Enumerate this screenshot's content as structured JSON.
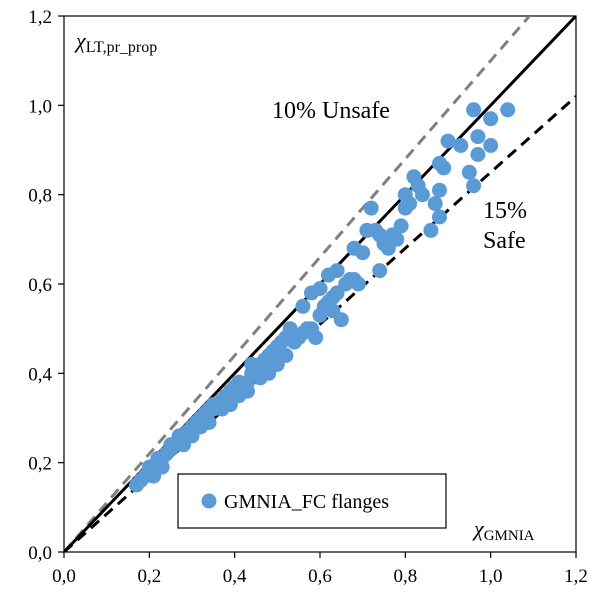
{
  "chart_data": {
    "type": "scatter",
    "xlim": [
      0,
      1.2
    ],
    "ylim": [
      0,
      1.2
    ],
    "x_ticks": [
      "0,0",
      "0,2",
      "0,4",
      "0,6",
      "0,8",
      "1,0",
      "1,2"
    ],
    "y_ticks": [
      "0,0",
      "0,2",
      "0,4",
      "0,6",
      "0,8",
      "1,0",
      "1,2"
    ],
    "xlabel": {
      "main": "χ",
      "sub": "GMNIA"
    },
    "ylabel": {
      "main": "χ",
      "sub": "LT,pr_prop"
    },
    "grid": false,
    "legend": {
      "position": "bottom-center",
      "entries": [
        "GMNIA_FC flanges"
      ]
    },
    "reference_lines": [
      {
        "slope": 1.1,
        "style": "dashed",
        "color": "#808080",
        "label_lines": [
          "10% Unsafe"
        ]
      },
      {
        "slope": 1.0,
        "style": "solid",
        "color": "#000000",
        "label_lines": []
      },
      {
        "slope": 0.85,
        "style": "dashed",
        "color": "#000000",
        "label_lines": [
          "15%",
          "Safe"
        ]
      }
    ],
    "series": [
      {
        "name": "GMNIA_FC flanges",
        "color": "#5b9bd5",
        "points": [
          [
            0.17,
            0.15
          ],
          [
            0.18,
            0.16
          ],
          [
            0.19,
            0.17
          ],
          [
            0.2,
            0.18
          ],
          [
            0.2,
            0.19
          ],
          [
            0.21,
            0.19
          ],
          [
            0.22,
            0.2
          ],
          [
            0.22,
            0.21
          ],
          [
            0.23,
            0.21
          ],
          [
            0.24,
            0.22
          ],
          [
            0.21,
            0.17
          ],
          [
            0.23,
            0.19
          ],
          [
            0.25,
            0.23
          ],
          [
            0.25,
            0.24
          ],
          [
            0.26,
            0.24
          ],
          [
            0.27,
            0.25
          ],
          [
            0.27,
            0.26
          ],
          [
            0.28,
            0.26
          ],
          [
            0.29,
            0.27
          ],
          [
            0.3,
            0.27
          ],
          [
            0.3,
            0.28
          ],
          [
            0.31,
            0.29
          ],
          [
            0.32,
            0.3
          ],
          [
            0.33,
            0.3
          ],
          [
            0.33,
            0.31
          ],
          [
            0.34,
            0.32
          ],
          [
            0.35,
            0.32
          ],
          [
            0.35,
            0.33
          ],
          [
            0.28,
            0.24
          ],
          [
            0.3,
            0.26
          ],
          [
            0.32,
            0.28
          ],
          [
            0.34,
            0.29
          ],
          [
            0.36,
            0.33
          ],
          [
            0.37,
            0.34
          ],
          [
            0.38,
            0.35
          ],
          [
            0.39,
            0.36
          ],
          [
            0.4,
            0.37
          ],
          [
            0.41,
            0.38
          ],
          [
            0.42,
            0.37
          ],
          [
            0.43,
            0.38
          ],
          [
            0.44,
            0.4
          ],
          [
            0.45,
            0.41
          ],
          [
            0.37,
            0.32
          ],
          [
            0.39,
            0.33
          ],
          [
            0.41,
            0.35
          ],
          [
            0.43,
            0.36
          ],
          [
            0.44,
            0.42
          ],
          [
            0.46,
            0.42
          ],
          [
            0.47,
            0.43
          ],
          [
            0.48,
            0.44
          ],
          [
            0.49,
            0.45
          ],
          [
            0.5,
            0.46
          ],
          [
            0.51,
            0.47
          ],
          [
            0.52,
            0.48
          ],
          [
            0.53,
            0.5
          ],
          [
            0.46,
            0.39
          ],
          [
            0.48,
            0.4
          ],
          [
            0.5,
            0.42
          ],
          [
            0.52,
            0.44
          ],
          [
            0.54,
            0.47
          ],
          [
            0.55,
            0.48
          ],
          [
            0.56,
            0.49
          ],
          [
            0.57,
            0.5
          ],
          [
            0.58,
            0.5
          ],
          [
            0.59,
            0.48
          ],
          [
            0.6,
            0.53
          ],
          [
            0.61,
            0.55
          ],
          [
            0.62,
            0.56
          ],
          [
            0.63,
            0.57
          ],
          [
            0.64,
            0.58
          ],
          [
            0.58,
            0.58
          ],
          [
            0.6,
            0.59
          ],
          [
            0.62,
            0.62
          ],
          [
            0.64,
            0.63
          ],
          [
            0.66,
            0.6
          ],
          [
            0.67,
            0.61
          ],
          [
            0.68,
            0.61
          ],
          [
            0.69,
            0.6
          ],
          [
            0.65,
            0.52
          ],
          [
            0.63,
            0.54
          ],
          [
            0.71,
            0.72
          ],
          [
            0.72,
            0.77
          ],
          [
            0.73,
            0.72
          ],
          [
            0.74,
            0.71
          ],
          [
            0.75,
            0.69
          ],
          [
            0.76,
            0.68
          ],
          [
            0.77,
            0.71
          ],
          [
            0.78,
            0.7
          ],
          [
            0.79,
            0.73
          ],
          [
            0.8,
            0.8
          ],
          [
            0.8,
            0.77
          ],
          [
            0.81,
            0.78
          ],
          [
            0.82,
            0.84
          ],
          [
            0.83,
            0.82
          ],
          [
            0.84,
            0.8
          ],
          [
            0.86,
            0.72
          ],
          [
            0.87,
            0.78
          ],
          [
            0.88,
            0.75
          ],
          [
            0.88,
            0.81
          ],
          [
            0.89,
            0.86
          ],
          [
            0.88,
            0.87
          ],
          [
            0.9,
            0.92
          ],
          [
            0.93,
            0.91
          ],
          [
            0.95,
            0.85
          ],
          [
            0.96,
            0.82
          ],
          [
            0.96,
            0.99
          ],
          [
            0.97,
            0.93
          ],
          [
            0.97,
            0.89
          ],
          [
            1.0,
            0.91
          ],
          [
            1.0,
            0.97
          ],
          [
            1.04,
            0.99
          ],
          [
            0.68,
            0.68
          ],
          [
            0.7,
            0.67
          ],
          [
            0.56,
            0.55
          ],
          [
            0.74,
            0.63
          ]
        ]
      }
    ]
  }
}
